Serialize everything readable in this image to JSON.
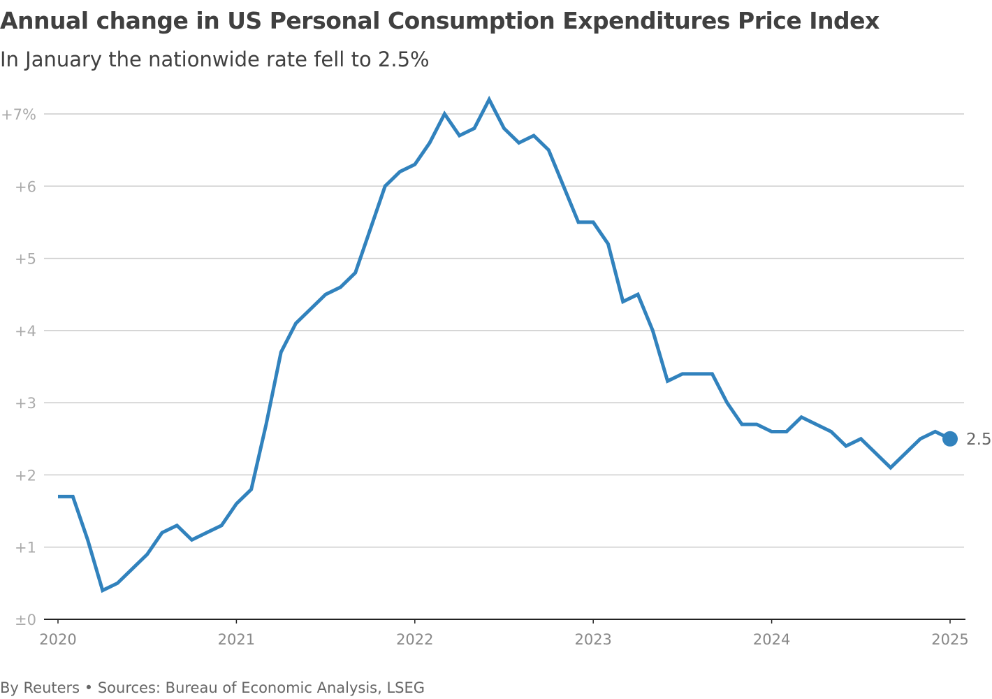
{
  "title": "Annual change in US Personal Consumption Expenditures Price Index",
  "subtitle": "In January the nationwide rate fell to 2.5%",
  "footer": "By Reuters • Sources: Bureau of Economic Analysis, LSEG",
  "chart_data": {
    "type": "line",
    "title": "Annual change in US Personal Consumption Expenditures Price Index",
    "subtitle": "In January the nationwide rate fell to 2.5%",
    "ylim": [
      0,
      7
    ],
    "y_ticks": [
      0,
      1,
      2,
      3,
      4,
      5,
      6,
      7
    ],
    "y_tick_labels": [
      "±0",
      "+1",
      "+2",
      "+3",
      "+4",
      "+5",
      "+6",
      "+7%"
    ],
    "x_tick_labels": [
      "2020",
      "2021",
      "2022",
      "2023",
      "2024",
      "2025"
    ],
    "grid": true,
    "line_color": "#3182bd",
    "start": "2020-01",
    "frequency": "monthly",
    "values": [
      1.7,
      1.7,
      1.1,
      0.4,
      0.5,
      0.7,
      0.9,
      1.2,
      1.3,
      1.1,
      1.2,
      1.3,
      1.6,
      1.8,
      2.7,
      3.7,
      4.1,
      4.3,
      4.5,
      4.6,
      4.8,
      5.4,
      6.0,
      6.2,
      6.3,
      6.6,
      7.0,
      6.7,
      6.8,
      7.2,
      6.8,
      6.6,
      6.7,
      6.5,
      6.0,
      5.5,
      5.5,
      5.2,
      4.4,
      4.5,
      4.0,
      3.3,
      3.4,
      3.4,
      3.4,
      3.0,
      2.7,
      2.7,
      2.6,
      2.6,
      2.8,
      2.7,
      2.6,
      2.4,
      2.5,
      2.3,
      2.1,
      2.3,
      2.5,
      2.6,
      2.5
    ],
    "end_label": "2.5"
  }
}
